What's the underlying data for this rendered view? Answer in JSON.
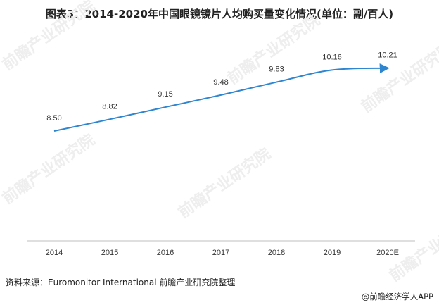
{
  "title": "图表3：2014-2020年中国眼镜镜片人均购买量变化情况(单位：副/百人)",
  "source": "资料来源：Euromonitor International 前瞻产业研究院整理",
  "brand": "@前瞻经济学人APP",
  "watermark_text": "前瞻产业研究院",
  "colors": {
    "line": "#2E86D1",
    "axis": "#BFBFBF",
    "text": "#333333"
  },
  "chart_data": {
    "type": "line",
    "title": "图表3：2014-2020年中国眼镜镜片人均购买量变化情况(单位：副/百人)",
    "xlabel": "",
    "ylabel": "",
    "categories": [
      "2014",
      "2015",
      "2016",
      "2017",
      "2018",
      "2019",
      "2020E"
    ],
    "series": [
      {
        "values": [
          8.5,
          8.82,
          9.15,
          9.48,
          9.83,
          10.16,
          10.21
        ]
      }
    ],
    "data_labels": [
      "8.50",
      "8.82",
      "9.15",
      "9.48",
      "9.83",
      "10.16",
      "10.21"
    ],
    "grid": false,
    "legend": "none",
    "line_end_arrow": true
  }
}
